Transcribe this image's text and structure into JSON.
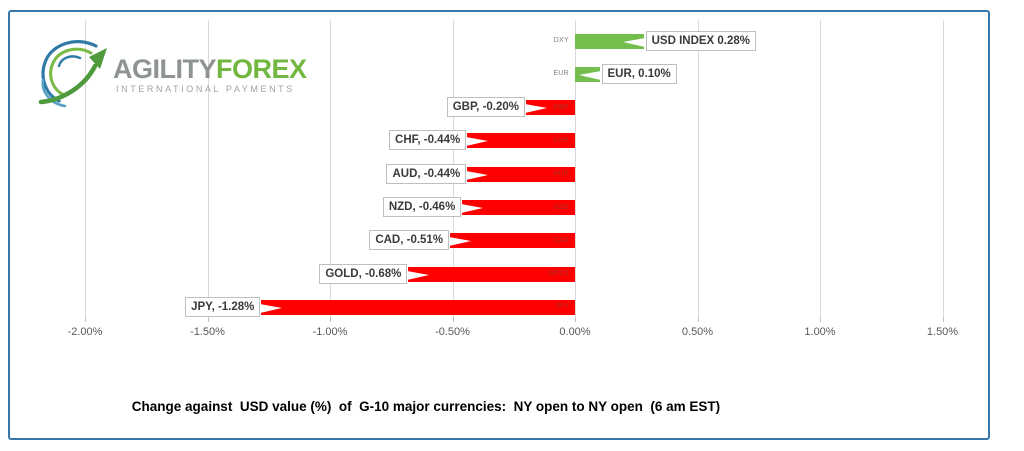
{
  "frame": {
    "border_color": "#3678AC"
  },
  "logo": {
    "word1": "AGILITY",
    "word2": "FOREX",
    "tagline": "INTERNATIONAL PAYMENTS",
    "word1_color": "#8E9394",
    "word2_color": "#72B740",
    "tagline_color": "#9CA3A6",
    "globe_blue": "#34749E",
    "globe_green": "#72B740"
  },
  "chart_data": {
    "type": "bar",
    "orientation": "horizontal",
    "title": "Change against  USD value (%)  of  G-10 major currencies:  NY open to NY open  (6 am EST)",
    "categories": [
      "DXY",
      "EUR",
      "GBP",
      "CHF",
      "AUD",
      "NZD",
      "CAD",
      "GOLD",
      "JPY"
    ],
    "values": [
      0.28,
      0.1,
      -0.2,
      -0.44,
      -0.44,
      -0.46,
      -0.51,
      -0.68,
      -1.28
    ],
    "data_labels": [
      "USD INDEX 0.28%",
      "EUR, 0.10%",
      "GBP, -0.20%",
      "CHF, -0.44%",
      "AUD, -0.44%",
      "NZD, -0.46%",
      "CAD, -0.51%",
      "GOLD, -0.68%",
      "JPY, -1.28%"
    ],
    "x_tick_labels": [
      "-2.00%",
      "-1.50%",
      "-1.00%",
      "-0.50%",
      "0.00%",
      "0.50%",
      "1.00%",
      "1.50%"
    ],
    "x_tick_values": [
      -2.0,
      -1.5,
      -1.0,
      -0.5,
      0.0,
      0.5,
      1.0,
      1.5
    ],
    "xlim": [
      -2.2,
      1.7
    ],
    "grid": true,
    "legend": "none",
    "positive_color": "#74BE4E",
    "negative_color": "#FE0000",
    "gridline_color": "#D9D9D9",
    "axis_label_color": "#595959",
    "inbar_label_color": "#A33425",
    "outside_cat_label_color": "#7F7F7F"
  }
}
